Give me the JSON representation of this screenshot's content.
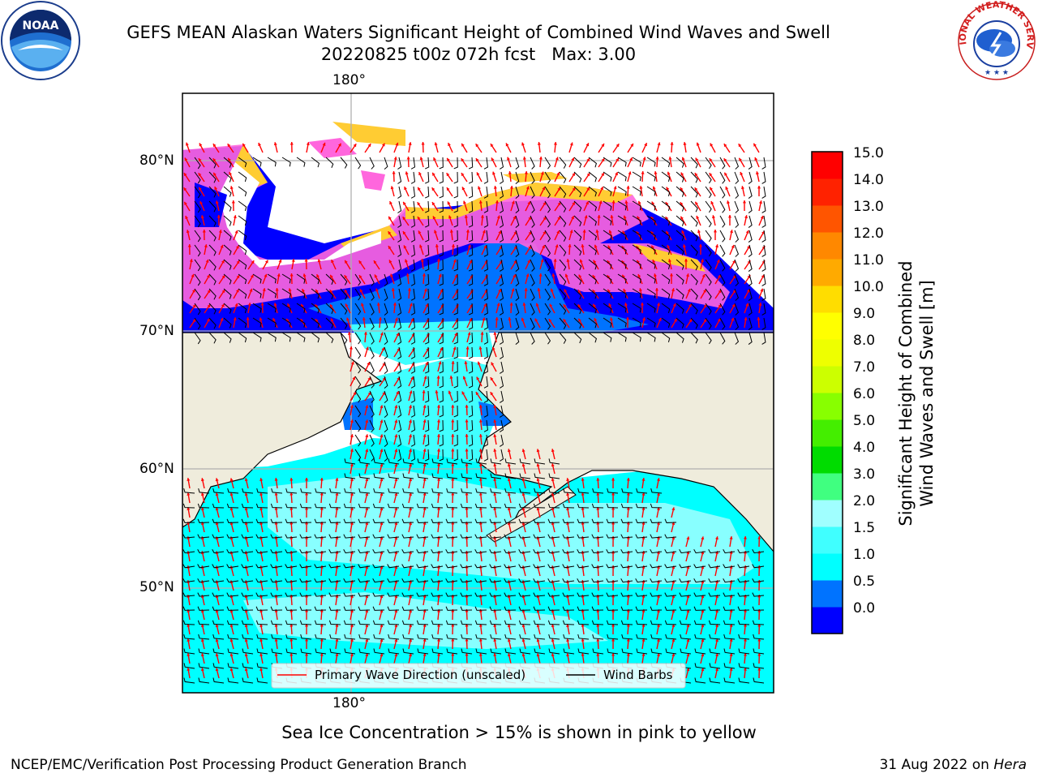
{
  "header": {
    "title_line1": "GEFS MEAN Alaskan Waters Significant Height of Combined Wind Waves and Swell",
    "title_line2": "20220825 t00z 072h fcst   Max: 3.00"
  },
  "logos": {
    "noaa": {
      "text": "NOAA",
      "icon": "noaa-logo-icon"
    },
    "nws": {
      "text": "NATIONAL WEATHER SERVICE",
      "icon": "nws-logo-icon"
    }
  },
  "map": {
    "lon_label_top": "180°",
    "lon_label_bottom": "180°",
    "lat_labels": [
      "80°N",
      "70°N",
      "60°N",
      "50°N"
    ],
    "colors": {
      "land": "#efecdc",
      "grid": "#b0b0b0",
      "wave_arrow": "#ff0000",
      "wind_barb": "#000000"
    },
    "legend": {
      "wave_label": "Primary Wave Direction (unscaled)",
      "wind_label": "Wind Barbs"
    }
  },
  "colorbar": {
    "label_line1": "Significant Height of Combined",
    "label_line2": "Wind Waves and Swell [m]",
    "ticks": [
      "15.0",
      "14.0",
      "13.0",
      "12.0",
      "11.0",
      "10.0",
      "9.0",
      "8.0",
      "7.0",
      "6.0",
      "5.0",
      "4.0",
      "3.0",
      "2.0",
      "1.5",
      "1.0",
      "0.5",
      "0.0"
    ],
    "colors": [
      "#0000ff",
      "#0073ff",
      "#00ffff",
      "#40ffff",
      "#a0ffff",
      "#40ff80",
      "#00dc00",
      "#44ee00",
      "#88ff00",
      "#ccff00",
      "#eeff00",
      "#ffff00",
      "#ffdd00",
      "#ffaa00",
      "#ff8800",
      "#ff5500",
      "#ff2200",
      "#ff0000"
    ]
  },
  "footer": {
    "sea_ice_note": "Sea Ice Concentration > 15% is shown in pink to yellow",
    "branch": "NCEP/EMC/Verification Post Processing Product Generation Branch",
    "date": "31 Aug 2022 on ",
    "machine": "Hera"
  }
}
